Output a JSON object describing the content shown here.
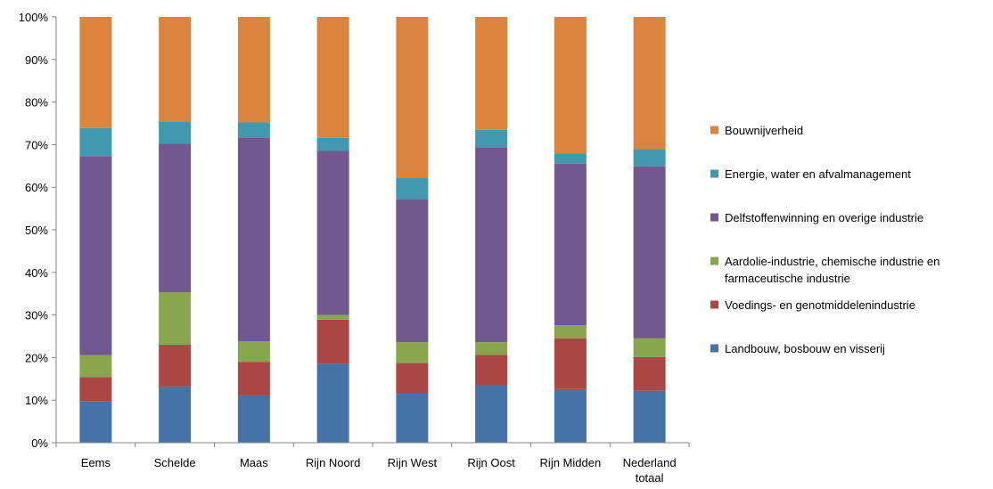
{
  "chart_data": {
    "type": "bar",
    "stacked": true,
    "ylim": [
      0,
      100
    ],
    "ytick_labels": [
      "0%",
      "10%",
      "20%",
      "30%",
      "40%",
      "50%",
      "60%",
      "70%",
      "80%",
      "90%",
      "100%"
    ],
    "categories": [
      [
        "Eems"
      ],
      [
        "Schelde"
      ],
      [
        "Maas"
      ],
      [
        "Rijn Noord"
      ],
      [
        "Rijn West"
      ],
      [
        "Rijn Oost"
      ],
      [
        "Rijn Midden"
      ],
      [
        "Nederland",
        "totaal"
      ]
    ],
    "series": [
      {
        "name": "Landbouw, bosbouw en visserij",
        "color": "#4572A7",
        "values": [
          9.8,
          13.2,
          11.1,
          18.6,
          11.5,
          13.6,
          12.6,
          12.2
        ]
      },
      {
        "name": "Voedings- en genotmiddelenindustrie",
        "color": "#AA4643",
        "values": [
          5.6,
          9.8,
          7.9,
          10.3,
          7.2,
          7.0,
          11.9,
          7.9
        ]
      },
      {
        "name": "Aardolie-industrie, chemische industrie en farmaceutische industrie",
        "color": "#89A54E",
        "values": [
          5.2,
          12.3,
          4.8,
          1.1,
          4.9,
          3.0,
          3.1,
          4.4
        ]
      },
      {
        "name": "Delfstoffenwinning en overige industrie",
        "color": "#71588F",
        "values": [
          46.7,
          34.9,
          47.9,
          38.6,
          33.6,
          45.8,
          37.9,
          40.4
        ]
      },
      {
        "name": "Energie, water en afvalmanagement",
        "color": "#4198AF",
        "values": [
          6.6,
          5.2,
          3.5,
          3.0,
          5.1,
          4.1,
          2.4,
          4.1
        ]
      },
      {
        "name": "Bouwnijverheid",
        "color": "#DB843D",
        "values": [
          26.1,
          24.6,
          24.8,
          28.4,
          37.7,
          26.5,
          32.1,
          31.0
        ]
      }
    ],
    "legend_order": [
      5,
      4,
      3,
      2,
      1,
      0
    ],
    "legend_labels": [
      [
        "Bouwnijverheid"
      ],
      [
        "Energie, water en afvalmanagement"
      ],
      [
        "Delfstoffenwinning en overige industrie"
      ],
      [
        "Aardolie-industrie, chemische industrie en",
        "farmaceutische industrie"
      ],
      [
        "Voedings- en genotmiddelenindustrie"
      ],
      [
        "Landbouw, bosbouw en visserij"
      ]
    ],
    "grid": false,
    "legend_position": "right"
  }
}
